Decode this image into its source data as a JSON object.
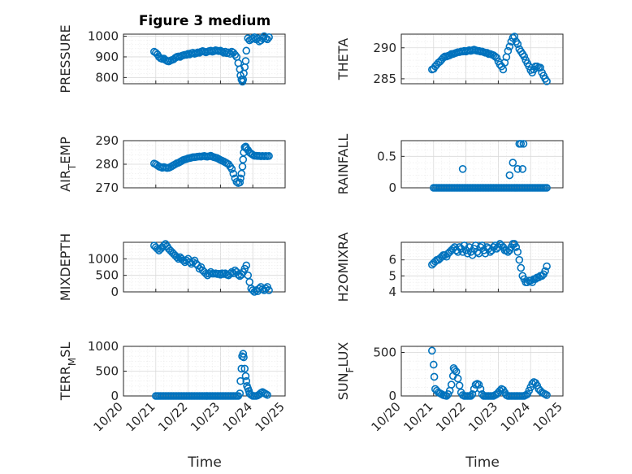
{
  "figure": {
    "title": "Figure 3 medium",
    "marker_color": "#0072BD",
    "axis_color": "#262626",
    "xlabel": "Time",
    "x_tick_labels": [
      "10/20",
      "10/21",
      "10/22",
      "10/23",
      "10/24",
      "10/25"
    ]
  },
  "chart_data": [
    {
      "type": "scatter",
      "id": "pressure",
      "ylabel_parts": [
        {
          "t": "PRESSURE"
        }
      ],
      "xlim": [
        0,
        5
      ],
      "ylim": [
        770,
        1010
      ],
      "yticks": [
        800,
        900,
        1000
      ],
      "x": [
        0.95,
        1.0,
        1.05,
        1.1,
        1.15,
        1.2,
        1.25,
        1.3,
        1.35,
        1.4,
        1.45,
        1.5,
        1.55,
        1.6,
        1.65,
        1.7,
        1.75,
        1.8,
        1.85,
        1.9,
        1.95,
        2.0,
        2.05,
        2.1,
        2.15,
        2.2,
        2.25,
        2.3,
        2.35,
        2.4,
        2.45,
        2.5,
        2.55,
        2.6,
        2.65,
        2.7,
        2.75,
        2.8,
        2.85,
        2.9,
        2.95,
        3.0,
        3.05,
        3.1,
        3.15,
        3.2,
        3.25,
        3.3,
        3.35,
        3.4,
        3.45,
        3.5,
        3.55,
        3.6,
        3.62,
        3.65,
        3.68,
        3.7,
        3.72,
        3.75,
        3.78,
        3.8,
        3.85,
        3.9,
        3.95,
        4.0,
        4.05,
        4.1,
        4.15,
        4.2,
        4.25,
        4.3,
        4.35,
        4.4,
        4.45,
        4.5
      ],
      "y": [
        925,
        920,
        912,
        900,
        893,
        890,
        892,
        885,
        880,
        878,
        882,
        885,
        888,
        895,
        900,
        902,
        900,
        905,
        908,
        910,
        910,
        915,
        912,
        918,
        920,
        915,
        918,
        922,
        920,
        925,
        928,
        925,
        922,
        925,
        928,
        930,
        925,
        928,
        932,
        930,
        928,
        930,
        925,
        920,
        925,
        918,
        922,
        915,
        925,
        920,
        910,
        900,
        870,
        840,
        810,
        790,
        780,
        790,
        820,
        850,
        880,
        930,
        990,
        980,
        985,
        990,
        995,
        985,
        990,
        975,
        980,
        990,
        1000,
        990,
        985,
        995
      ]
    },
    {
      "type": "scatter",
      "id": "theta",
      "ylabel_parts": [
        {
          "t": "THETA"
        }
      ],
      "xlim": [
        0,
        5
      ],
      "ylim": [
        284.2,
        292.2
      ],
      "yticks": [
        285,
        290
      ],
      "x": [
        0.95,
        1.0,
        1.05,
        1.1,
        1.15,
        1.2,
        1.25,
        1.3,
        1.35,
        1.4,
        1.45,
        1.5,
        1.55,
        1.6,
        1.65,
        1.7,
        1.75,
        1.8,
        1.85,
        1.9,
        1.95,
        2.0,
        2.05,
        2.1,
        2.15,
        2.2,
        2.25,
        2.3,
        2.35,
        2.4,
        2.45,
        2.5,
        2.55,
        2.6,
        2.65,
        2.7,
        2.75,
        2.8,
        2.85,
        2.9,
        2.95,
        3.0,
        3.05,
        3.1,
        3.15,
        3.2,
        3.25,
        3.3,
        3.35,
        3.4,
        3.45,
        3.5,
        3.55,
        3.6,
        3.65,
        3.7,
        3.75,
        3.8,
        3.85,
        3.9,
        3.95,
        4.0,
        4.05,
        4.1,
        4.15,
        4.2,
        4.25,
        4.3,
        4.35,
        4.4,
        4.45,
        4.5
      ],
      "y": [
        286.5,
        286.6,
        287.0,
        287.3,
        287.6,
        287.8,
        288.1,
        288.4,
        288.6,
        288.6,
        288.7,
        288.8,
        289.0,
        289.0,
        289.1,
        289.2,
        289.3,
        289.3,
        289.4,
        289.4,
        289.5,
        289.4,
        289.5,
        289.6,
        289.5,
        289.6,
        289.7,
        289.6,
        289.5,
        289.5,
        289.4,
        289.4,
        289.3,
        289.2,
        289.2,
        289.0,
        289.0,
        288.9,
        288.8,
        288.6,
        288.4,
        287.8,
        287.3,
        287.0,
        286.5,
        287.6,
        288.5,
        289.5,
        290.2,
        291.0,
        291.6,
        291.8,
        291.0,
        290.6,
        289.8,
        289.4,
        289.0,
        288.6,
        288.0,
        287.5,
        287.0,
        286.4,
        286.0,
        286.5,
        287.0,
        287.0,
        286.8,
        286.8,
        286.0,
        285.5,
        285.0,
        284.6
      ]
    },
    {
      "type": "scatter",
      "id": "air_temp",
      "ylabel_parts": [
        {
          "t": "AIR"
        },
        {
          "t": "T",
          "sub": true
        },
        {
          "t": "EMP"
        }
      ],
      "xlim": [
        0,
        5
      ],
      "ylim": [
        270,
        290
      ],
      "yticks": [
        270,
        280,
        290
      ],
      "x": [
        0.95,
        1.0,
        1.05,
        1.1,
        1.15,
        1.2,
        1.25,
        1.3,
        1.35,
        1.4,
        1.45,
        1.5,
        1.55,
        1.6,
        1.65,
        1.7,
        1.75,
        1.8,
        1.85,
        1.9,
        1.95,
        2.0,
        2.05,
        2.1,
        2.15,
        2.2,
        2.25,
        2.3,
        2.35,
        2.4,
        2.45,
        2.5,
        2.55,
        2.6,
        2.65,
        2.7,
        2.75,
        2.8,
        2.85,
        2.9,
        2.95,
        3.0,
        3.05,
        3.1,
        3.15,
        3.2,
        3.25,
        3.3,
        3.35,
        3.4,
        3.45,
        3.5,
        3.55,
        3.6,
        3.62,
        3.65,
        3.68,
        3.7,
        3.72,
        3.75,
        3.78,
        3.8,
        3.85,
        3.9,
        3.95,
        4.0,
        4.05,
        4.1,
        4.15,
        4.2,
        4.25,
        4.3,
        4.35,
        4.4,
        4.45,
        4.5
      ],
      "y": [
        280.3,
        280.0,
        279.5,
        279.0,
        278.8,
        278.5,
        278.8,
        278.6,
        278.4,
        278.5,
        278.8,
        279.2,
        279.6,
        280.0,
        280.4,
        280.6,
        281.0,
        281.4,
        281.8,
        282.0,
        282.2,
        282.5,
        282.6,
        282.8,
        283.0,
        283.0,
        283.1,
        283.2,
        283.3,
        283.2,
        283.4,
        283.5,
        283.3,
        283.2,
        283.4,
        283.6,
        283.2,
        283.0,
        282.8,
        282.6,
        282.2,
        281.8,
        281.5,
        281.2,
        280.8,
        280.4,
        280.0,
        279.0,
        278.0,
        276.0,
        274.0,
        272.5,
        272.0,
        272.3,
        274.0,
        276.0,
        279.0,
        282.0,
        285.0,
        287.2,
        287.5,
        286.8,
        286.0,
        285.0,
        284.5,
        284.0,
        283.6,
        283.6,
        283.5,
        283.5,
        283.4,
        283.5,
        283.4,
        283.5,
        283.4,
        283.5
      ]
    },
    {
      "type": "scatter",
      "id": "rainfall",
      "ylabel_parts": [
        {
          "t": "RAINFALL"
        }
      ],
      "xlim": [
        0,
        5
      ],
      "ylim": [
        0,
        0.75
      ],
      "yticks": [
        0,
        0.5
      ],
      "x": [
        1.0,
        1.05,
        1.1,
        1.15,
        1.2,
        1.25,
        1.3,
        1.35,
        1.4,
        1.45,
        1.5,
        1.55,
        1.6,
        1.65,
        1.7,
        1.75,
        1.8,
        1.85,
        1.9,
        1.95,
        2.0,
        2.05,
        2.1,
        2.15,
        2.2,
        2.25,
        2.3,
        2.35,
        2.4,
        2.45,
        2.5,
        2.55,
        2.6,
        2.65,
        2.7,
        2.75,
        2.8,
        2.85,
        2.9,
        2.95,
        3.0,
        3.05,
        3.1,
        3.15,
        3.2,
        3.25,
        3.3,
        3.35,
        3.4,
        3.45,
        3.5,
        3.55,
        3.6,
        3.65,
        3.7,
        3.75,
        3.8,
        3.85,
        3.9,
        3.95,
        4.0,
        4.05,
        4.1,
        4.15,
        4.2,
        4.25,
        4.3,
        4.35,
        4.4,
        4.45,
        4.5,
        1.9,
        3.35,
        3.45,
        3.6,
        3.65,
        3.7,
        3.75,
        3.78
      ],
      "y": [
        0,
        0,
        0,
        0,
        0,
        0,
        0,
        0,
        0,
        0,
        0,
        0,
        0,
        0,
        0,
        0,
        0,
        0,
        0,
        0,
        0,
        0,
        0,
        0,
        0,
        0,
        0,
        0,
        0,
        0,
        0,
        0,
        0,
        0,
        0,
        0,
        0,
        0,
        0,
        0,
        0,
        0,
        0,
        0,
        0,
        0,
        0,
        0,
        0,
        0,
        0,
        0,
        0,
        0,
        0,
        0,
        0,
        0,
        0,
        0,
        0,
        0,
        0,
        0,
        0,
        0,
        0,
        0,
        0,
        0,
        0,
        0.3,
        0.2,
        0.4,
        0.3,
        0.7,
        0.7,
        0.3,
        0.7
      ]
    },
    {
      "type": "scatter",
      "id": "mixdepth",
      "ylabel_parts": [
        {
          "t": "MIXDEPTH"
        }
      ],
      "xlim": [
        0,
        5
      ],
      "ylim": [
        0,
        1500
      ],
      "yticks": [
        0,
        500,
        1000
      ],
      "x": [
        0.95,
        1.0,
        1.05,
        1.1,
        1.15,
        1.2,
        1.25,
        1.3,
        1.35,
        1.4,
        1.45,
        1.5,
        1.55,
        1.6,
        1.65,
        1.7,
        1.75,
        1.8,
        1.85,
        1.9,
        1.95,
        2.0,
        2.05,
        2.1,
        2.15,
        2.2,
        2.25,
        2.3,
        2.35,
        2.4,
        2.45,
        2.5,
        2.55,
        2.6,
        2.65,
        2.7,
        2.75,
        2.8,
        2.85,
        2.9,
        2.95,
        3.0,
        3.05,
        3.1,
        3.15,
        3.2,
        3.25,
        3.3,
        3.35,
        3.4,
        3.45,
        3.5,
        3.55,
        3.6,
        3.65,
        3.7,
        3.75,
        3.8,
        3.85,
        3.9,
        3.95,
        4.0,
        4.05,
        4.1,
        4.15,
        4.2,
        4.25,
        4.3,
        4.35,
        4.4,
        4.45,
        4.5
      ],
      "y": [
        1400,
        1350,
        1300,
        1250,
        1300,
        1350,
        1400,
        1450,
        1380,
        1300,
        1250,
        1200,
        1150,
        1100,
        1050,
        1000,
        1050,
        1000,
        950,
        900,
        950,
        1000,
        900,
        850,
        900,
        950,
        850,
        800,
        700,
        750,
        650,
        600,
        550,
        500,
        550,
        600,
        550,
        550,
        560,
        540,
        550,
        520,
        560,
        540,
        560,
        520,
        500,
        550,
        600,
        560,
        650,
        600,
        520,
        480,
        520,
        600,
        700,
        800,
        500,
        300,
        100,
        50,
        0,
        50,
        20,
        100,
        150,
        80,
        50,
        100,
        150,
        50
      ]
    },
    {
      "type": "scatter",
      "id": "h2omixra",
      "ylabel_parts": [
        {
          "t": "H2OMIXRA"
        }
      ],
      "xlim": [
        0,
        5
      ],
      "ylim": [
        4,
        7.1
      ],
      "yticks": [
        4,
        5,
        6
      ],
      "x": [
        0.95,
        1.0,
        1.05,
        1.1,
        1.15,
        1.2,
        1.25,
        1.3,
        1.35,
        1.4,
        1.45,
        1.5,
        1.55,
        1.6,
        1.65,
        1.7,
        1.75,
        1.8,
        1.85,
        1.9,
        1.95,
        2.0,
        2.05,
        2.1,
        2.15,
        2.2,
        2.25,
        2.3,
        2.35,
        2.4,
        2.45,
        2.5,
        2.55,
        2.6,
        2.65,
        2.7,
        2.75,
        2.8,
        2.85,
        2.9,
        2.95,
        3.0,
        3.05,
        3.1,
        3.15,
        3.2,
        3.25,
        3.3,
        3.35,
        3.4,
        3.45,
        3.5,
        3.55,
        3.6,
        3.65,
        3.7,
        3.75,
        3.8,
        3.85,
        3.9,
        3.95,
        4.0,
        4.05,
        4.1,
        4.15,
        4.2,
        4.25,
        4.3,
        4.35,
        4.4,
        4.45,
        4.5
      ],
      "y": [
        5.7,
        5.8,
        5.9,
        6.0,
        6.0,
        6.1,
        6.2,
        6.3,
        6.3,
        6.2,
        6.4,
        6.5,
        6.6,
        6.7,
        6.8,
        6.6,
        6.5,
        6.8,
        6.7,
        6.5,
        6.9,
        6.6,
        6.4,
        6.8,
        6.5,
        6.3,
        6.7,
        6.9,
        6.5,
        6.4,
        6.8,
        6.9,
        6.6,
        6.4,
        6.8,
        6.7,
        6.5,
        6.6,
        6.8,
        6.9,
        6.7,
        6.8,
        7.0,
        6.9,
        6.8,
        6.6,
        6.6,
        6.5,
        6.6,
        6.8,
        7.0,
        7.0,
        6.8,
        6.5,
        6.0,
        5.5,
        5.0,
        4.8,
        4.6,
        4.6,
        4.7,
        4.7,
        4.6,
        4.8,
        4.8,
        4.9,
        4.9,
        5.0,
        5.0,
        5.1,
        5.3,
        5.6
      ]
    },
    {
      "type": "scatter",
      "id": "terrain",
      "ylabel_parts": [
        {
          "t": "TERR"
        },
        {
          "t": "M",
          "sub": true
        },
        {
          "t": "SL"
        }
      ],
      "xlim": [
        0,
        5
      ],
      "ylim": [
        0,
        1000
      ],
      "yticks": [
        0,
        500,
        1000
      ],
      "x": [
        1.0,
        1.05,
        1.1,
        1.15,
        1.2,
        1.25,
        1.3,
        1.35,
        1.4,
        1.45,
        1.5,
        1.55,
        1.6,
        1.65,
        1.7,
        1.75,
        1.8,
        1.85,
        1.9,
        1.95,
        2.0,
        2.05,
        2.1,
        2.15,
        2.2,
        2.25,
        2.3,
        2.35,
        2.4,
        2.45,
        2.5,
        2.55,
        2.6,
        2.65,
        2.7,
        2.75,
        2.8,
        2.85,
        2.9,
        2.95,
        3.0,
        3.05,
        3.1,
        3.15,
        3.2,
        3.25,
        3.3,
        3.35,
        3.4,
        3.45,
        3.5,
        3.55,
        3.6,
        3.62,
        3.65,
        3.67,
        3.7,
        3.72,
        3.75,
        3.78,
        3.8,
        3.82,
        3.85,
        3.88,
        3.9,
        3.95,
        4.0,
        4.05,
        4.1,
        4.15,
        4.2,
        4.25,
        4.3,
        4.35,
        4.4,
        4.45
      ],
      "y": [
        0,
        0,
        0,
        0,
        0,
        0,
        0,
        0,
        0,
        0,
        0,
        0,
        0,
        0,
        0,
        0,
        0,
        0,
        0,
        0,
        0,
        0,
        0,
        0,
        0,
        0,
        0,
        0,
        0,
        0,
        0,
        0,
        0,
        0,
        0,
        0,
        0,
        0,
        0,
        0,
        0,
        0,
        0,
        0,
        0,
        0,
        0,
        0,
        0,
        0,
        0,
        0,
        50,
        300,
        550,
        800,
        850,
        780,
        550,
        400,
        300,
        200,
        150,
        100,
        50,
        20,
        0,
        0,
        0,
        10,
        30,
        60,
        80,
        60,
        40,
        20
      ]
    },
    {
      "type": "scatter",
      "id": "sunflux",
      "ylabel_parts": [
        {
          "t": "SUN"
        },
        {
          "t": "F",
          "sub": true
        },
        {
          "t": "LUX"
        }
      ],
      "xlim": [
        0,
        5
      ],
      "ylim": [
        0,
        570
      ],
      "yticks": [
        0,
        500
      ],
      "x": [
        0.95,
        1.0,
        1.02,
        1.05,
        1.1,
        1.15,
        1.2,
        1.25,
        1.3,
        1.35,
        1.4,
        1.45,
        1.5,
        1.55,
        1.6,
        1.62,
        1.65,
        1.7,
        1.75,
        1.8,
        1.85,
        1.9,
        1.95,
        2.0,
        2.05,
        2.1,
        2.15,
        2.2,
        2.25,
        2.3,
        2.35,
        2.4,
        2.45,
        2.5,
        2.55,
        2.6,
        2.65,
        2.7,
        2.75,
        2.8,
        2.85,
        2.9,
        2.95,
        3.0,
        3.05,
        3.1,
        3.15,
        3.2,
        3.25,
        3.3,
        3.35,
        3.4,
        3.45,
        3.5,
        3.55,
        3.6,
        3.65,
        3.7,
        3.75,
        3.8,
        3.85,
        3.9,
        3.95,
        4.0,
        4.05,
        4.1,
        4.15,
        4.2,
        4.25,
        4.3,
        4.35,
        4.4,
        4.45,
        4.5
      ],
      "y": [
        520,
        360,
        220,
        80,
        60,
        40,
        30,
        20,
        10,
        5,
        0,
        20,
        60,
        130,
        230,
        320,
        300,
        280,
        200,
        120,
        40,
        10,
        0,
        0,
        0,
        0,
        0,
        20,
        80,
        130,
        140,
        130,
        80,
        20,
        0,
        0,
        0,
        0,
        0,
        0,
        0,
        10,
        20,
        40,
        60,
        80,
        70,
        40,
        10,
        0,
        0,
        0,
        0,
        0,
        0,
        0,
        0,
        0,
        0,
        0,
        10,
        20,
        60,
        100,
        140,
        160,
        150,
        120,
        80,
        60,
        40,
        30,
        20,
        10
      ]
    }
  ]
}
